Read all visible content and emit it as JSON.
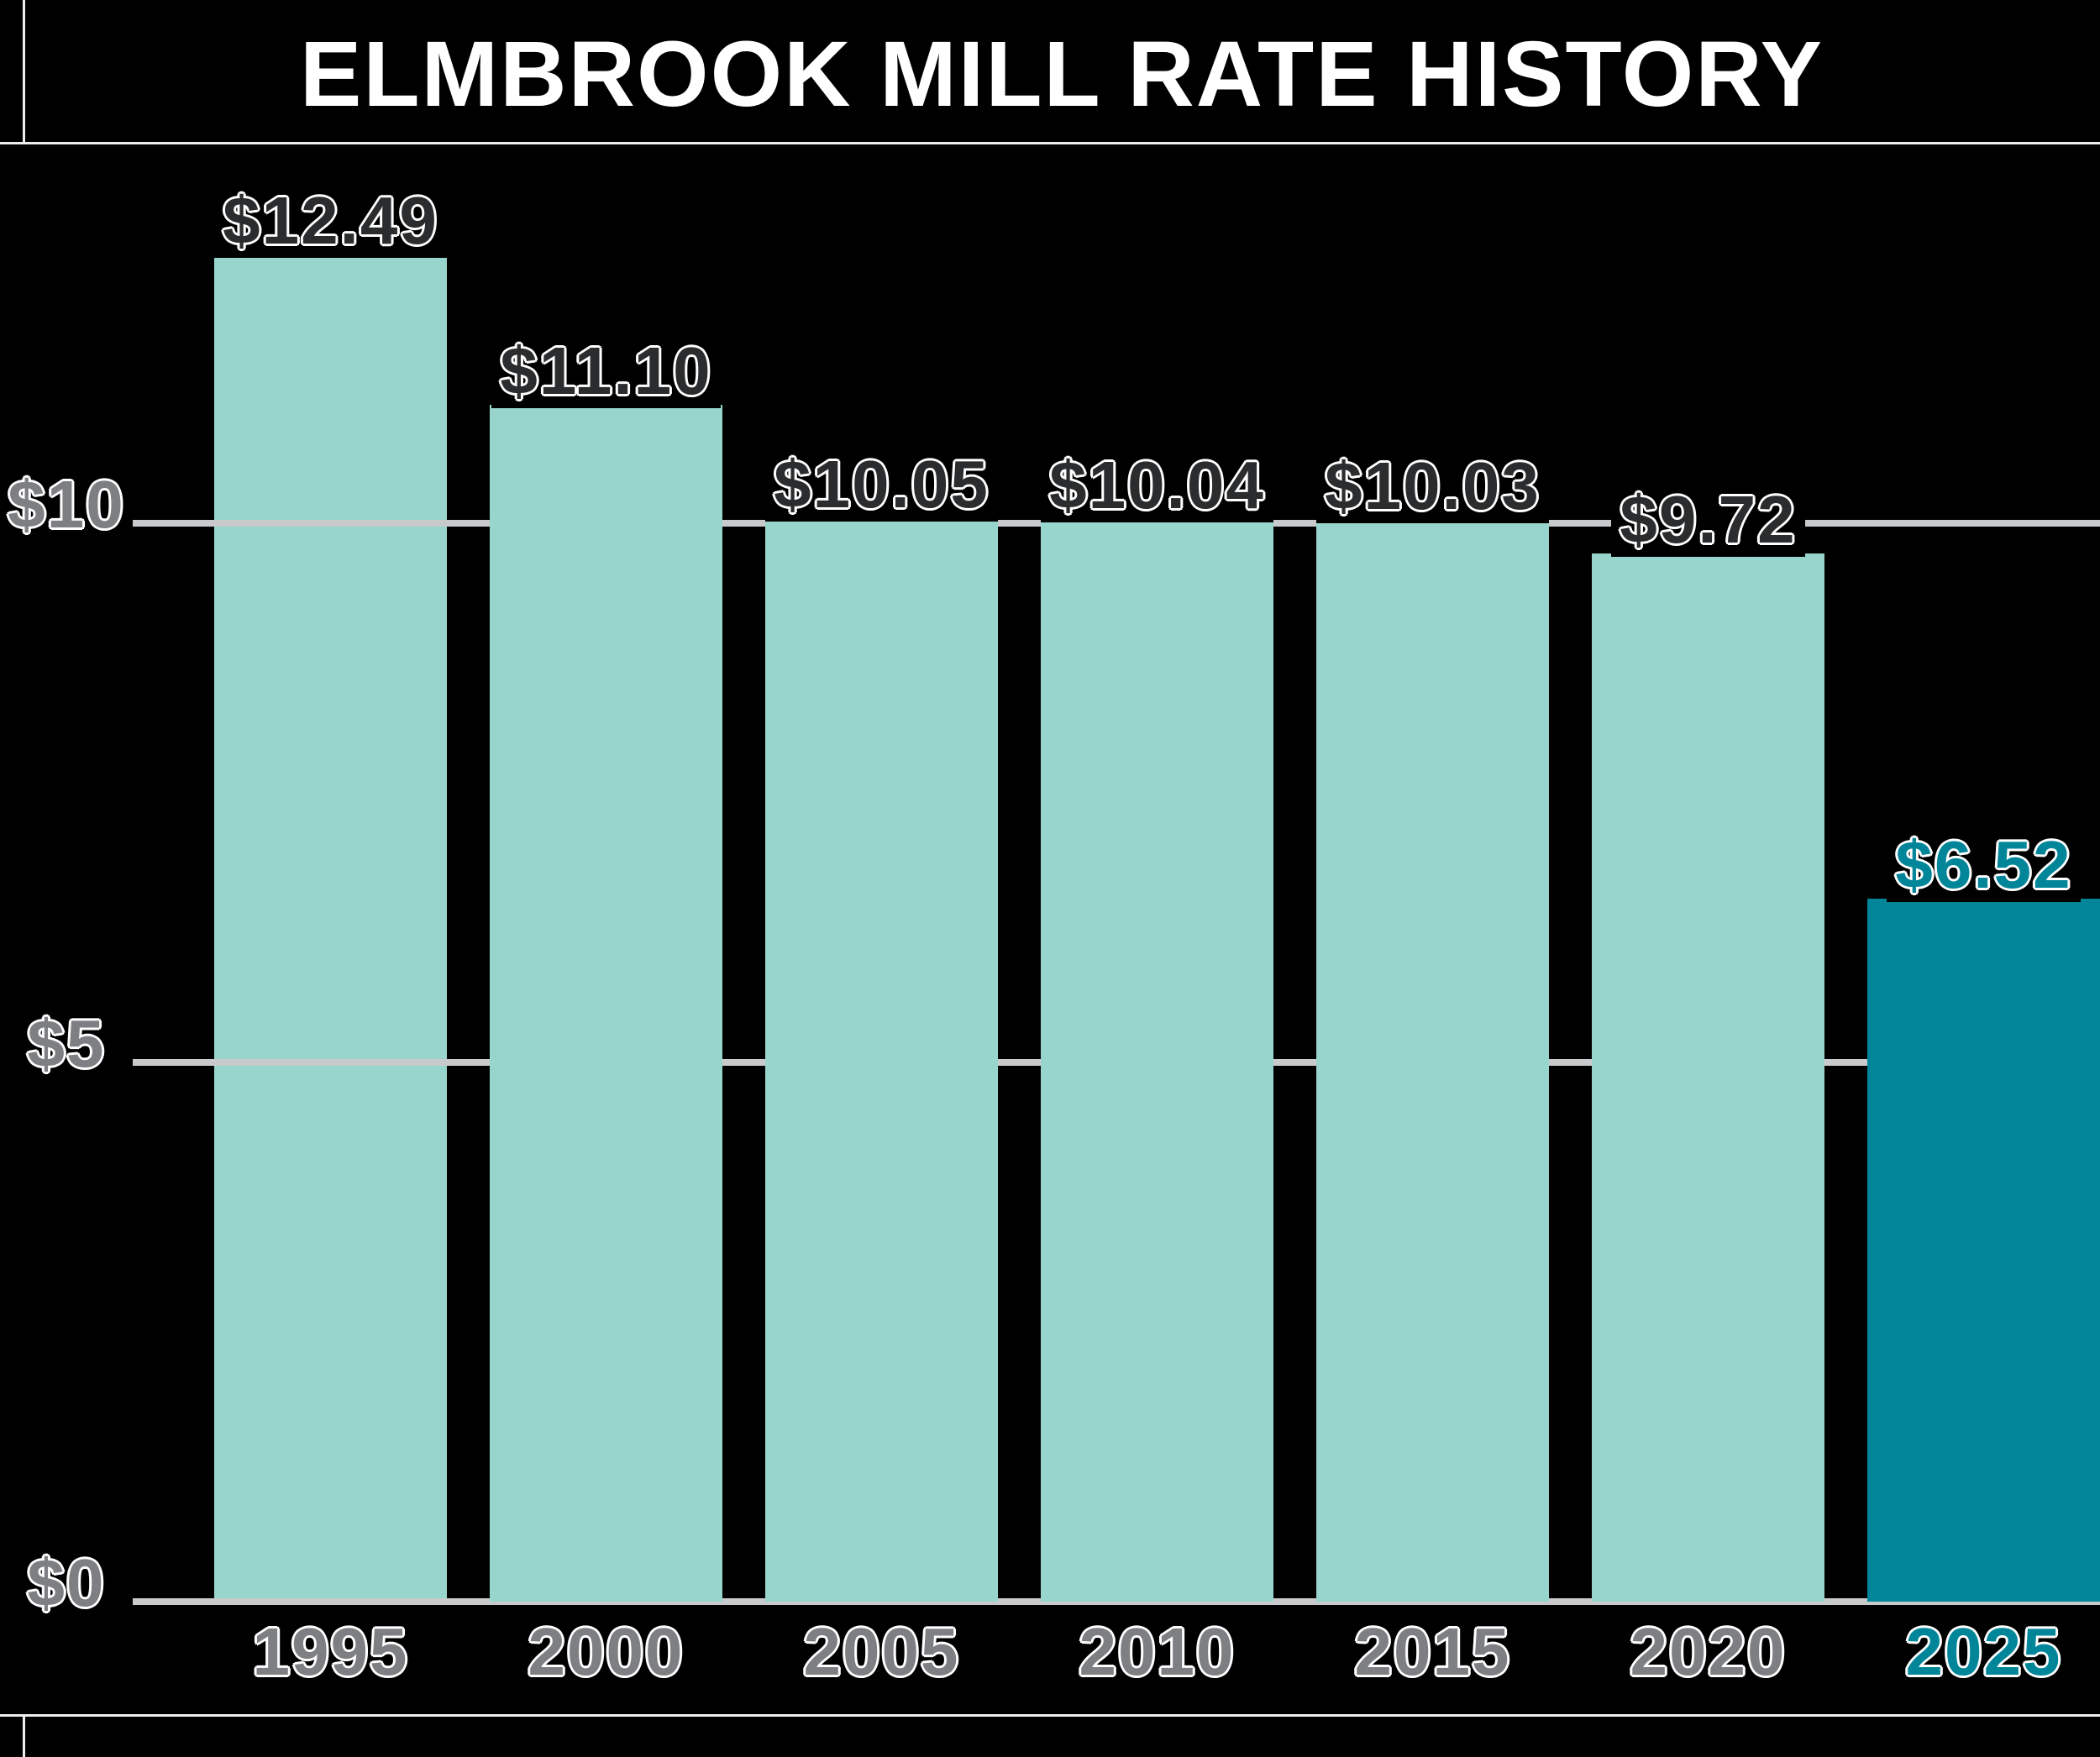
{
  "title": "ELMBROOK MILL RATE HISTORY",
  "chart_data": {
    "type": "bar",
    "title": "ELMBROOK MILL RATE HISTORY",
    "categories": [
      "1995",
      "2000",
      "2005",
      "2010",
      "2015",
      "2020",
      "2025"
    ],
    "values": [
      12.49,
      11.1,
      10.05,
      10.04,
      10.03,
      9.72,
      6.52
    ],
    "value_labels": [
      "$12.49",
      "$11.10",
      "$10.05",
      "$10.04",
      "$10.03",
      "$9.72",
      "$6.52"
    ],
    "xlabel": "",
    "ylabel": "",
    "ylim": [
      0,
      13
    ],
    "yticks": [
      {
        "label": "$10",
        "value": 10
      },
      {
        "label": "$5",
        "value": 5
      },
      {
        "label": "$0",
        "value": 0
      }
    ],
    "grid": "horizontal gridlines at $0, $5, $10",
    "legend": "none",
    "highlighted_category": "2025",
    "colors": {
      "bar_default": "#98D5CC",
      "bar_highlight": "#008599",
      "value_label_text": "#2A2C2E",
      "axis_label_text": "#7D7F82",
      "highlight_label_text": "#008599",
      "gridline": "#C9CACC",
      "title_text": "#FFFFFF",
      "background": "#000000",
      "divider_line": "#EDEDED",
      "label_halo": "#FFFFFF"
    }
  }
}
